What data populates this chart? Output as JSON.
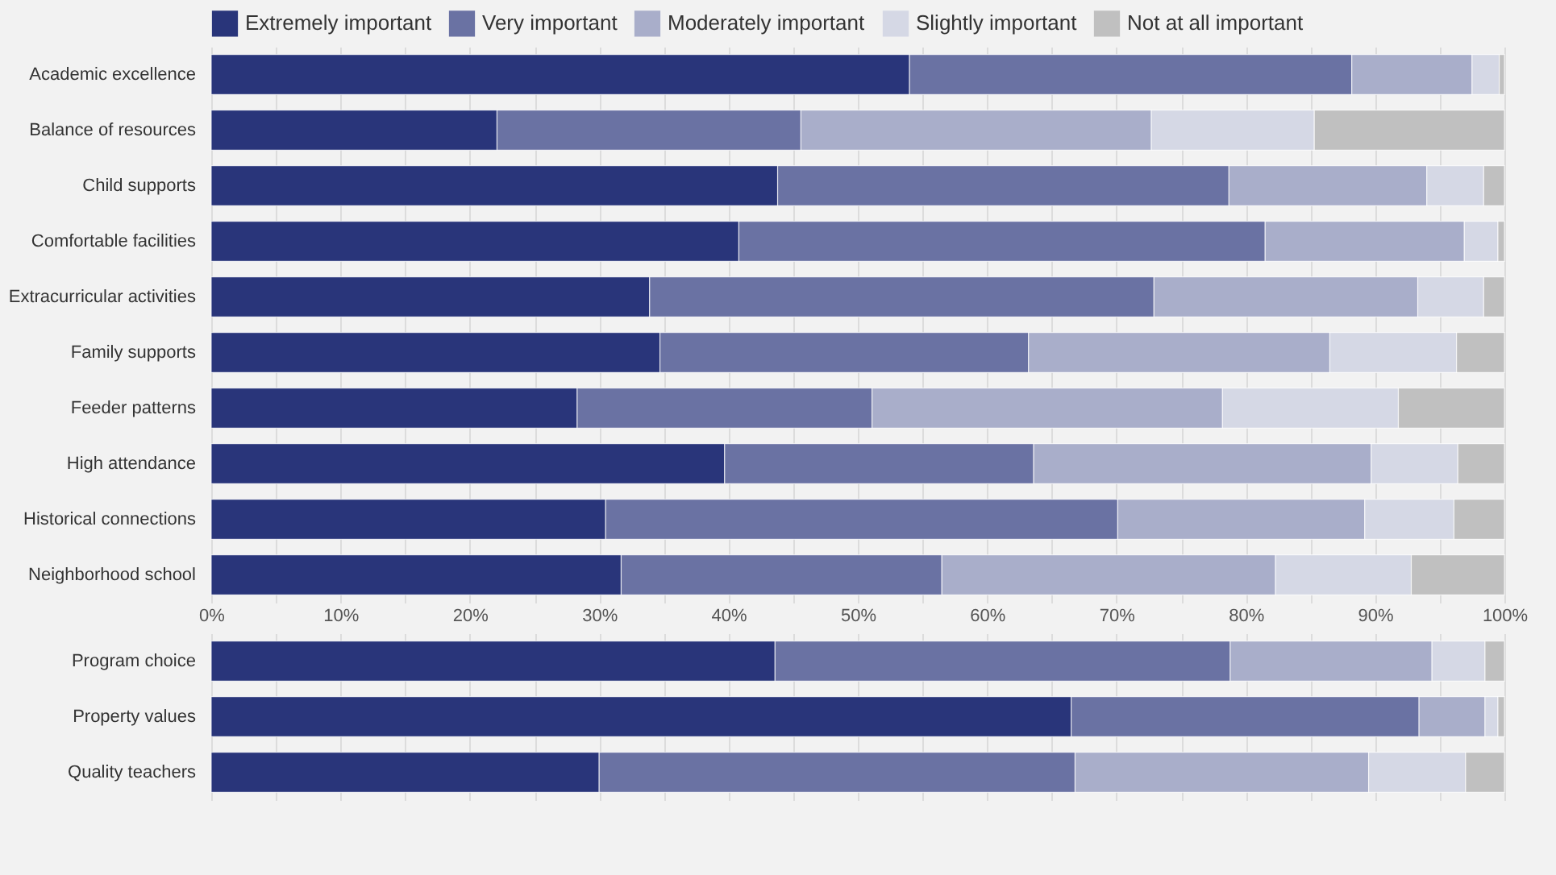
{
  "chart_data": [
    {
      "type": "bar",
      "orientation": "horizontal",
      "stacked": true,
      "legend": "top",
      "grid": "x",
      "categories": [
        "Academic excellence",
        "Balance of resources",
        "Child supports",
        "Comfortable facilities",
        "Extracurricular activities",
        "Family supports",
        "Feeder patterns",
        "High attendance",
        "Historical connections",
        "Neighborhood school"
      ],
      "xlim": [
        0,
        100
      ],
      "xticks": [
        {
          "value": 0,
          "label": "0%"
        },
        {
          "value": 5,
          "label": null
        },
        {
          "value": 10,
          "label": "10%"
        },
        {
          "value": 15,
          "label": null
        },
        {
          "value": 20,
          "label": "20%"
        },
        {
          "value": 25,
          "label": null
        },
        {
          "value": 30,
          "label": "30%"
        },
        {
          "value": 35,
          "label": null
        },
        {
          "value": 40,
          "label": "40%"
        },
        {
          "value": 45,
          "label": null
        },
        {
          "value": 50,
          "label": "50%"
        },
        {
          "value": 55,
          "label": null
        },
        {
          "value": 60,
          "label": "60%"
        },
        {
          "value": 65,
          "label": null
        },
        {
          "value": 70,
          "label": "70%"
        },
        {
          "value": 75,
          "label": null
        },
        {
          "value": 80,
          "label": "80%"
        },
        {
          "value": 85,
          "label": null
        },
        {
          "value": 90,
          "label": "90%"
        },
        {
          "value": 95,
          "label": null
        },
        {
          "value": 100,
          "label": "100%"
        }
      ],
      "series": [
        {
          "name": "Extremely important",
          "color": "#29357a",
          "values": [
            54.0,
            22.1,
            43.8,
            40.8,
            33.9,
            34.7,
            28.3,
            39.7,
            30.5,
            31.7
          ]
        },
        {
          "name": "Very important",
          "color": "#6a72a3",
          "values": [
            34.2,
            23.5,
            34.9,
            40.7,
            39.0,
            28.5,
            22.8,
            23.9,
            39.6,
            24.8
          ]
        },
        {
          "name": "Moderately important",
          "color": "#a9aeca",
          "values": [
            9.3,
            27.1,
            15.3,
            15.4,
            20.4,
            23.3,
            27.1,
            26.1,
            19.1,
            25.8
          ]
        },
        {
          "name": "Slightly important",
          "color": "#d5d8e5",
          "values": [
            2.1,
            12.6,
            4.4,
            2.6,
            5.1,
            9.8,
            13.6,
            6.7,
            6.9,
            10.5
          ]
        },
        {
          "name": "Not at all important",
          "color": "#c0c0c0",
          "values": [
            0.4,
            14.7,
            1.6,
            0.5,
            1.6,
            3.7,
            8.2,
            3.6,
            3.9,
            7.2
          ]
        }
      ]
    },
    {
      "type": "bar",
      "orientation": "horizontal",
      "stacked": true,
      "grid": "x",
      "tick_labels": "y",
      "categories": [
        "Program choice",
        "Property values",
        "Quality teachers"
      ],
      "xlim": [
        0,
        100
      ],
      "xticks": [
        0,
        5,
        10,
        15,
        20,
        25,
        30,
        35,
        40,
        45,
        50,
        55,
        60,
        65,
        70,
        75,
        80,
        85,
        90,
        95,
        100
      ],
      "series": [
        {
          "color": "#29357a",
          "values": [
            43.6,
            66.5,
            30.0
          ]
        },
        {
          "color": "#6a72a3",
          "values": [
            35.2,
            26.9,
            36.8
          ]
        },
        {
          "color": "#a9aeca",
          "values": [
            15.6,
            5.1,
            22.7
          ]
        },
        {
          "color": "#d5d8e5",
          "values": [
            4.1,
            1.0,
            7.5
          ]
        },
        {
          "color": "#c0c0c0",
          "values": [
            1.5,
            0.5,
            3.0
          ]
        }
      ]
    }
  ]
}
